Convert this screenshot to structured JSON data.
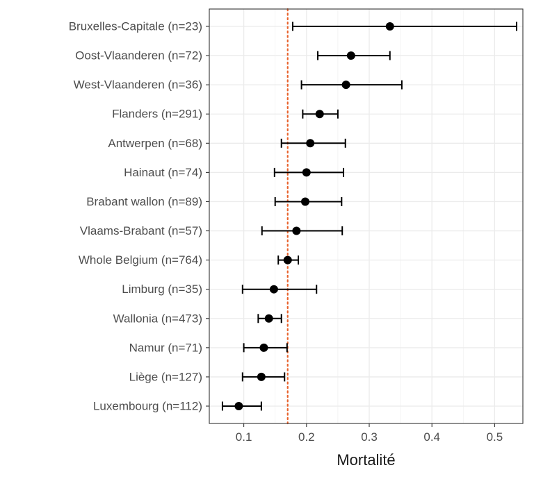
{
  "chart_data": {
    "type": "scatter",
    "subtype": "dot-and-whisker",
    "xlabel": "Mortalité",
    "ylabel": "",
    "title": "",
    "xlim": [
      0.045,
      0.545
    ],
    "xticks": [
      0.1,
      0.2,
      0.3,
      0.4,
      0.5
    ],
    "xtick_labels": [
      "0.1",
      "0.2",
      "0.3",
      "0.4",
      "0.5"
    ],
    "reference_line": {
      "x": 0.17,
      "style": "dotted",
      "color": "#e8622c"
    },
    "grid": true,
    "theme": "bw",
    "point_color": "#000000",
    "categories": [
      "Bruxelles-Capitale (n=23)",
      "Oost-Vlaanderen (n=72)",
      "West-Vlaanderen (n=36)",
      "Flanders (n=291)",
      "Antwerpen (n=68)",
      "Hainaut (n=74)",
      "Brabant wallon (n=89)",
      "Vlaams-Brabant (n=57)",
      "Whole Belgium (n=764)",
      "Limburg (n=35)",
      "Wallonia (n=473)",
      "Namur (n=71)",
      "Liège (n=127)",
      "Luxembourg (n=112)"
    ],
    "values": [
      0.333,
      0.271,
      0.263,
      0.221,
      0.206,
      0.2,
      0.198,
      0.184,
      0.17,
      0.148,
      0.14,
      0.132,
      0.128,
      0.092
    ],
    "lower": [
      0.178,
      0.218,
      0.192,
      0.194,
      0.16,
      0.149,
      0.15,
      0.129,
      0.155,
      0.098,
      0.123,
      0.1,
      0.098,
      0.066
    ],
    "upper": [
      0.535,
      0.333,
      0.352,
      0.25,
      0.262,
      0.259,
      0.256,
      0.257,
      0.187,
      0.216,
      0.16,
      0.169,
      0.165,
      0.128
    ]
  }
}
